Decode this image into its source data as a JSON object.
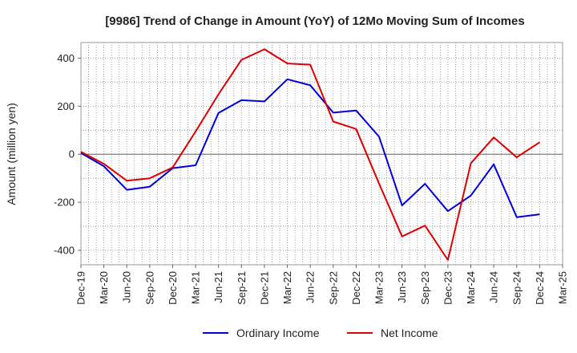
{
  "chart_data": {
    "type": "line",
    "title": "[9986]  Trend of Change in Amount (YoY) of 12Mo Moving Sum of Incomes",
    "xlabel": "",
    "ylabel": "Amount (million yen)",
    "ylim": [
      -460,
      465
    ],
    "yticks": [
      -400,
      -200,
      0,
      200,
      400
    ],
    "x": [
      "Dec-19",
      "Mar-20",
      "Jun-20",
      "Sep-20",
      "Dec-20",
      "Mar-21",
      "Jun-21",
      "Sep-21",
      "Dec-21",
      "Mar-22",
      "Jun-22",
      "Sep-22",
      "Dec-22",
      "Mar-23",
      "Jun-23",
      "Sep-23",
      "Dec-23",
      "Mar-24",
      "Jun-24",
      "Sep-24",
      "Dec-24",
      "Mar-25"
    ],
    "grid": true,
    "legend_position": "bottom",
    "series": [
      {
        "name": "Ordinary Income",
        "color": "#0000dd",
        "values": [
          5,
          -50,
          -148,
          -135,
          -58,
          -46,
          172,
          225,
          220,
          312,
          287,
          173,
          182,
          73,
          -213,
          -123,
          -237,
          -172,
          -42,
          -262,
          -250,
          null
        ]
      },
      {
        "name": "Net Income",
        "color": "#dd0000",
        "values": [
          10,
          -40,
          -110,
          -100,
          -55,
          95,
          250,
          393,
          437,
          378,
          373,
          136,
          105,
          -122,
          -342,
          -297,
          -440,
          -38,
          70,
          -13,
          50,
          null
        ]
      }
    ]
  }
}
